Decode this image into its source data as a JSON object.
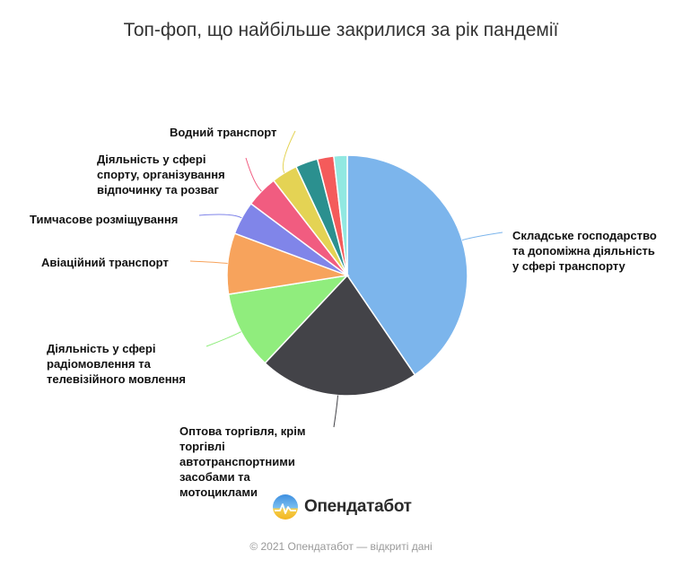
{
  "chart_data": {
    "type": "pie",
    "title": "Топ-фоп, що найбільше закрилися за рік пандемії",
    "slices": [
      {
        "label": "Складське господарство та допоміжна діяльність у сфері транспорту",
        "value": 40.5,
        "color": "#7cb5ec"
      },
      {
        "label": "Оптова торгівля, крім торгівлі автотранспортними засобами та мотоциклами",
        "value": 21.5,
        "color": "#434348"
      },
      {
        "label": "Діяльність у сфері радіомовлення та телевізійного мовлення",
        "value": 10.5,
        "color": "#90ed7d"
      },
      {
        "label": "Авіаційний транспорт",
        "value": 8.2,
        "color": "#f7a35c"
      },
      {
        "label": "Тимчасове розміщування",
        "value": 4.5,
        "color": "#8085e9"
      },
      {
        "label": "Діяльність у сфері спорту, організування відпочинку та розваг",
        "value": 4.3,
        "color": "#f15c80"
      },
      {
        "label": "Водний транспорт",
        "value": 3.5,
        "color": "#e4d354"
      },
      {
        "label": "",
        "value": 3.0,
        "color": "#2b908f"
      },
      {
        "label": "",
        "value": 2.2,
        "color": "#f45b5b"
      },
      {
        "label": "",
        "value": 1.8,
        "color": "#91e8e1"
      }
    ],
    "labels_display": [
      [
        "Складське господарство",
        "та допоміжна діяльність",
        "у сфері транспорту"
      ],
      [
        "Оптова торгівля, крім",
        "торгівлі",
        "автотранспортними",
        "засобами та",
        "мотоциклами"
      ],
      [
        "Діяльність у сфері",
        "радіомовлення та",
        "телевізійного мовлення"
      ],
      [
        "Авіаційний транспорт"
      ],
      [
        "Тимчасове розміщування"
      ],
      [
        "Діяльність у сфері",
        "спорту, організування",
        "відпочинку та розваг"
      ],
      [
        "Водний транспорт"
      ]
    ]
  },
  "brand": {
    "name": "Опендатабот"
  },
  "footer": {
    "text": "© 2021 Опендатабот — відкриті дані"
  }
}
